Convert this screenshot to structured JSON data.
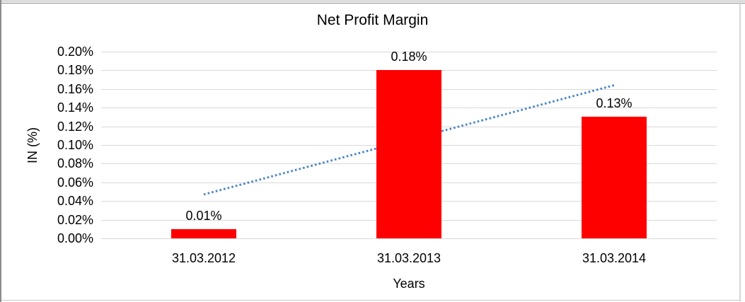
{
  "chart_data": {
    "type": "bar",
    "title": "Net Profit Margin",
    "xlabel": "Years",
    "ylabel": "IN (%)",
    "categories": [
      "31.03.2012",
      "31.03.2013",
      "31.03.2014"
    ],
    "values": [
      0.01,
      0.18,
      0.13
    ],
    "data_labels": [
      "0.01%",
      "0.18%",
      "0.13%"
    ],
    "ylim": [
      0,
      0.2
    ],
    "ytick_step": 0.02,
    "yticks": [
      "0.20%",
      "0.18%",
      "0.16%",
      "0.14%",
      "0.12%",
      "0.10%",
      "0.08%",
      "0.06%",
      "0.04%",
      "0.02%",
      "0.00%"
    ],
    "grid": true,
    "legend": false,
    "bar_color": "#ff0000",
    "gridline_color": "#d9d9d9",
    "trendline": {
      "type": "linear",
      "style": "dotted",
      "color": "#4a86c8",
      "start_value": 0.047,
      "end_value": 0.164
    }
  }
}
